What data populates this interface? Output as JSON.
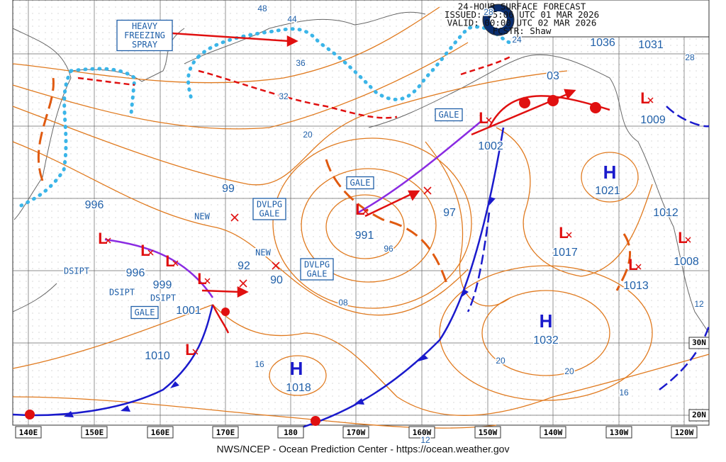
{
  "header": {
    "lines": [
      "24-HOUR SURFACE FORECAST",
      "ISSUED: 05:06 UTC 01 MAR 2026",
      "VALID:  00:00 UTC 02 MAR 2026",
      "FCSTR:  Shaw"
    ]
  },
  "footer": "NWS/NCEP - Ocean Prediction Center - https://ocean.weather.gov",
  "longitude_labels": [
    "140E",
    "150E",
    "160E",
    "170E",
    "180",
    "170W",
    "160W",
    "150W",
    "140W",
    "130W",
    "120W"
  ],
  "latitude_labels": [
    "30N",
    "20N"
  ],
  "systems": {
    "high_symbol": "H",
    "low_symbol": "L"
  },
  "center_pressures": [
    "996",
    "996",
    "999",
    "1001",
    "1010",
    "1018",
    "991",
    "1002",
    "1021",
    "1017",
    "1013",
    "1012",
    "1008",
    "1009",
    "1032",
    "1031",
    "1036"
  ],
  "isobar_labels": [
    "48",
    "44",
    "36",
    "32",
    "20",
    "28",
    "24",
    "99",
    "92",
    "90",
    "97",
    "96",
    "08",
    "16",
    "20",
    "20",
    "16",
    "12",
    "12",
    "28",
    "03"
  ],
  "boxed_labels": [
    {
      "lines": [
        "HEAVY",
        "FREEZING",
        "SPRAY"
      ]
    },
    {
      "lines": [
        "GALE"
      ]
    },
    {
      "lines": [
        "GALE"
      ]
    },
    {
      "lines": [
        "GALE"
      ]
    },
    {
      "lines": [
        "DVLPG",
        "GALE"
      ]
    },
    {
      "lines": [
        "DVLPG",
        "GALE"
      ]
    }
  ],
  "notes": [
    "NEW",
    "NEW",
    "DSIPT",
    "DSIPT",
    "DSIPT"
  ]
}
